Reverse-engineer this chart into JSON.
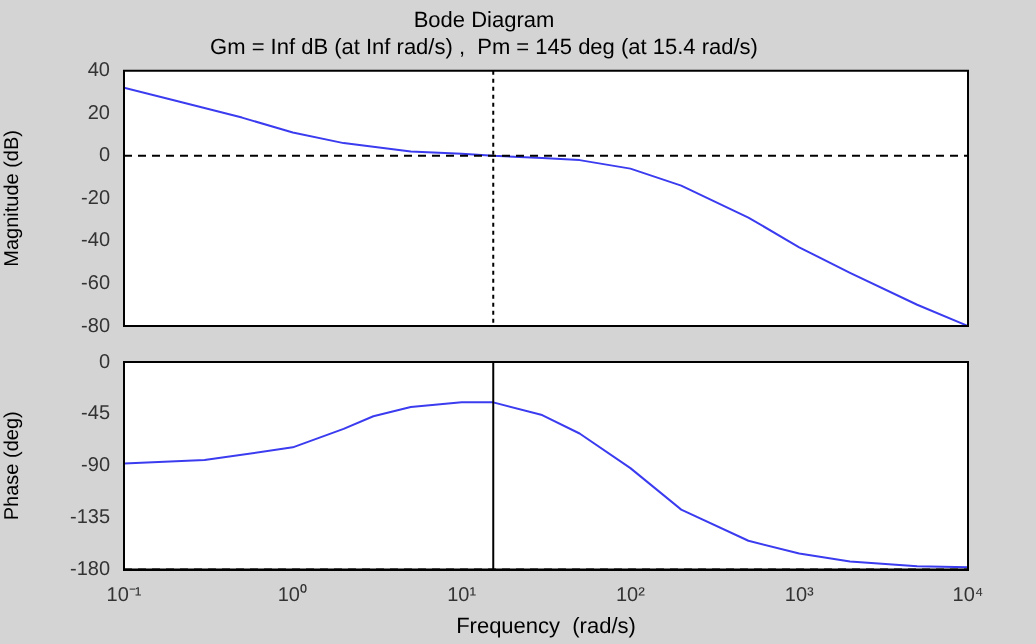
{
  "chart_data": [
    {
      "type": "line",
      "title": "Bode Diagram",
      "subtitle": "Gm = Inf dB (at Inf rad/s) ,  Pm = 145 deg (at 15.4 rad/s)",
      "ylabel": "Magnitude (dB)",
      "log": "x",
      "xlim": [
        0.1,
        10000
      ],
      "xticks": [
        {
          "value": 0.1,
          "label": null
        },
        {
          "value": 1,
          "label": null
        },
        {
          "value": 10,
          "label": null
        },
        {
          "value": 100,
          "label": null
        },
        {
          "value": 1000,
          "label": null
        },
        {
          "value": 10000,
          "label": null
        }
      ],
      "ylim": [
        -80,
        40
      ],
      "yticks": [
        -80,
        -60,
        -40,
        -20,
        0,
        20,
        40
      ],
      "tick_labels": "y",
      "grid": false,
      "legend": false,
      "marker": "none",
      "line_style": "solid",
      "x": [
        0.1,
        0.2,
        0.5,
        1,
        2,
        5,
        10,
        15.4,
        30,
        50,
        100,
        200,
        500,
        1000,
        2000,
        5000,
        10000
      ],
      "series": [
        {
          "color": "#3b3bf0",
          "values": [
            32,
            26,
            18,
            11,
            6,
            2,
            1,
            0,
            -1,
            -2,
            -6,
            -14,
            -29,
            -43,
            -55,
            -70,
            -80
          ]
        }
      ],
      "ref_lines": [
        {
          "axis": "y",
          "value": 0,
          "line_style": "dashed",
          "color": "#000000"
        },
        {
          "axis": "x",
          "value": 15.4,
          "line_style": "dotted",
          "color": "#000000"
        }
      ]
    },
    {
      "type": "line",
      "xlabel": "Frequency  (rad/s)",
      "ylabel": "Phase (deg)",
      "log": "x",
      "xlim": [
        0.1,
        10000
      ],
      "xticks": [
        {
          "value": 0.1,
          "label": "10⁻¹"
        },
        {
          "value": 1,
          "label": "10⁰"
        },
        {
          "value": 10,
          "label": "10¹"
        },
        {
          "value": 100,
          "label": "10²"
        },
        {
          "value": 1000,
          "label": "10³"
        },
        {
          "value": 10000,
          "label": "10⁴"
        }
      ],
      "ylim": [
        -180,
        0
      ],
      "yticks": [
        -180,
        -135,
        -90,
        -45,
        0
      ],
      "grid": false,
      "legend": false,
      "marker": "none",
      "line_style": "solid",
      "x": [
        0.1,
        0.3,
        1,
        2,
        3,
        5,
        10,
        15.4,
        30,
        50,
        100,
        200,
        500,
        1000,
        2000,
        5000,
        10000
      ],
      "series": [
        {
          "color": "#3b3bf0",
          "values": [
            -88,
            -85,
            -74,
            -58,
            -47,
            -39,
            -35,
            -35,
            -46,
            -62,
            -92,
            -128,
            -155,
            -166,
            -173,
            -177,
            -178
          ]
        }
      ],
      "ref_lines": [
        {
          "axis": "y",
          "value": -180,
          "line_style": "dashed",
          "color": "#000000"
        },
        {
          "axis": "x",
          "value": 15.4,
          "line_style": "solid",
          "color": "#000000"
        }
      ]
    }
  ]
}
